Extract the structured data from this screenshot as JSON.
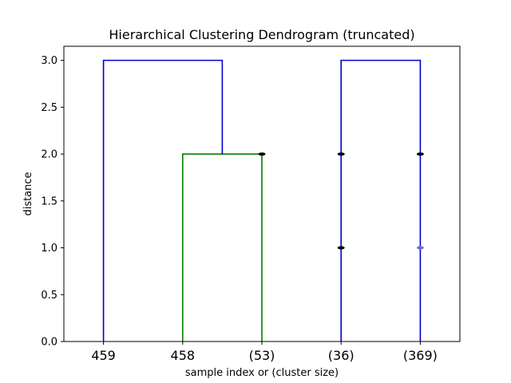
{
  "chart_data": {
    "type": "dendrogram",
    "title": "Hierarchical Clustering Dendrogram (truncated)",
    "xlabel": "sample index or (cluster size)",
    "ylabel": "distance",
    "ylim": [
      0,
      3.15
    ],
    "yticks": [
      "0.0",
      "0.5",
      "1.0",
      "1.5",
      "2.0",
      "2.5",
      "3.0"
    ],
    "ytick_values": [
      0,
      0.5,
      1.0,
      1.5,
      2.0,
      2.5,
      3.0
    ],
    "leaves": [
      "459",
      "458",
      "(53)",
      "(36)",
      "(369)"
    ],
    "colors": {
      "above_threshold": "#0000cc",
      "cluster": "#008000",
      "marker": "#000000",
      "marker_faint": "#7b68c8"
    },
    "links": [
      {
        "name": "green-cluster-link",
        "left": 1,
        "right": 2,
        "height": 2.0,
        "left_base": 0,
        "right_base": 0,
        "color": "cluster"
      },
      {
        "name": "top-link-left",
        "left": 0,
        "right_mid": [
          1,
          2
        ],
        "height": 3.0,
        "left_base": 0,
        "right_base": 2.0,
        "color": "above_threshold"
      },
      {
        "name": "top-link-right",
        "left": 3,
        "right": 4,
        "height": 3.0,
        "left_base": 0,
        "right_base": 0,
        "color": "above_threshold"
      }
    ],
    "markers": [
      {
        "leaf": 2,
        "y": 2.0,
        "color": "marker"
      },
      {
        "leaf": 3,
        "y": 2.0,
        "color": "marker"
      },
      {
        "leaf": 3,
        "y": 1.0,
        "color": "marker"
      },
      {
        "leaf": 4,
        "y": 2.0,
        "color": "marker"
      },
      {
        "leaf": 4,
        "y": 1.0,
        "color": "marker_faint"
      }
    ]
  }
}
